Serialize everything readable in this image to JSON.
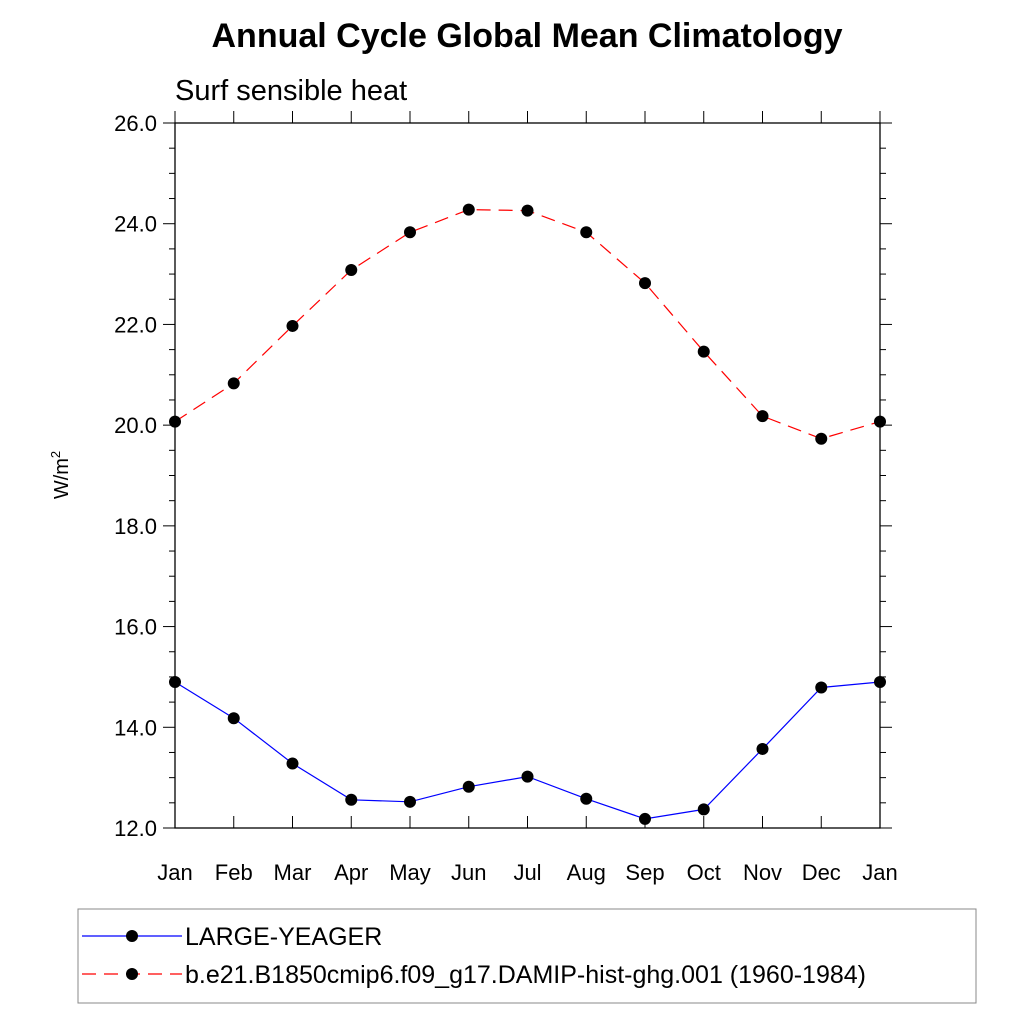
{
  "chart_data": {
    "type": "line",
    "title": "Annual Cycle Global Mean Climatology",
    "subtitle": "Surf sensible heat",
    "xlabel": "",
    "ylabel_base": "W/m",
    "ylabel_sup": "2",
    "categories": [
      "Jan",
      "Feb",
      "Mar",
      "Apr",
      "May",
      "Jun",
      "Jul",
      "Aug",
      "Sep",
      "Oct",
      "Nov",
      "Dec",
      "Jan"
    ],
    "ylim": [
      12.0,
      26.0
    ],
    "yticks": [
      "12.0",
      "14.0",
      "16.0",
      "18.0",
      "20.0",
      "22.0",
      "24.0",
      "26.0"
    ],
    "grid": false,
    "legend_position": "bottom",
    "series": [
      {
        "name": "LARGE-YEAGER",
        "color": "#0000ff",
        "line_style": "solid",
        "marker": "filled-circle",
        "values": [
          14.9,
          14.18,
          13.28,
          12.56,
          12.52,
          12.82,
          13.02,
          12.58,
          12.18,
          12.37,
          13.57,
          14.79,
          14.9
        ]
      },
      {
        "name": "b.e21.B1850cmip6.f09_g17.DAMIP-hist-ghg.001 (1960-1984)",
        "color": "#ff0000",
        "line_style": "dashed",
        "marker": "filled-circle",
        "values": [
          20.07,
          20.83,
          21.97,
          23.08,
          23.83,
          24.28,
          24.26,
          23.83,
          22.82,
          21.46,
          20.18,
          19.73,
          20.07
        ]
      }
    ]
  }
}
